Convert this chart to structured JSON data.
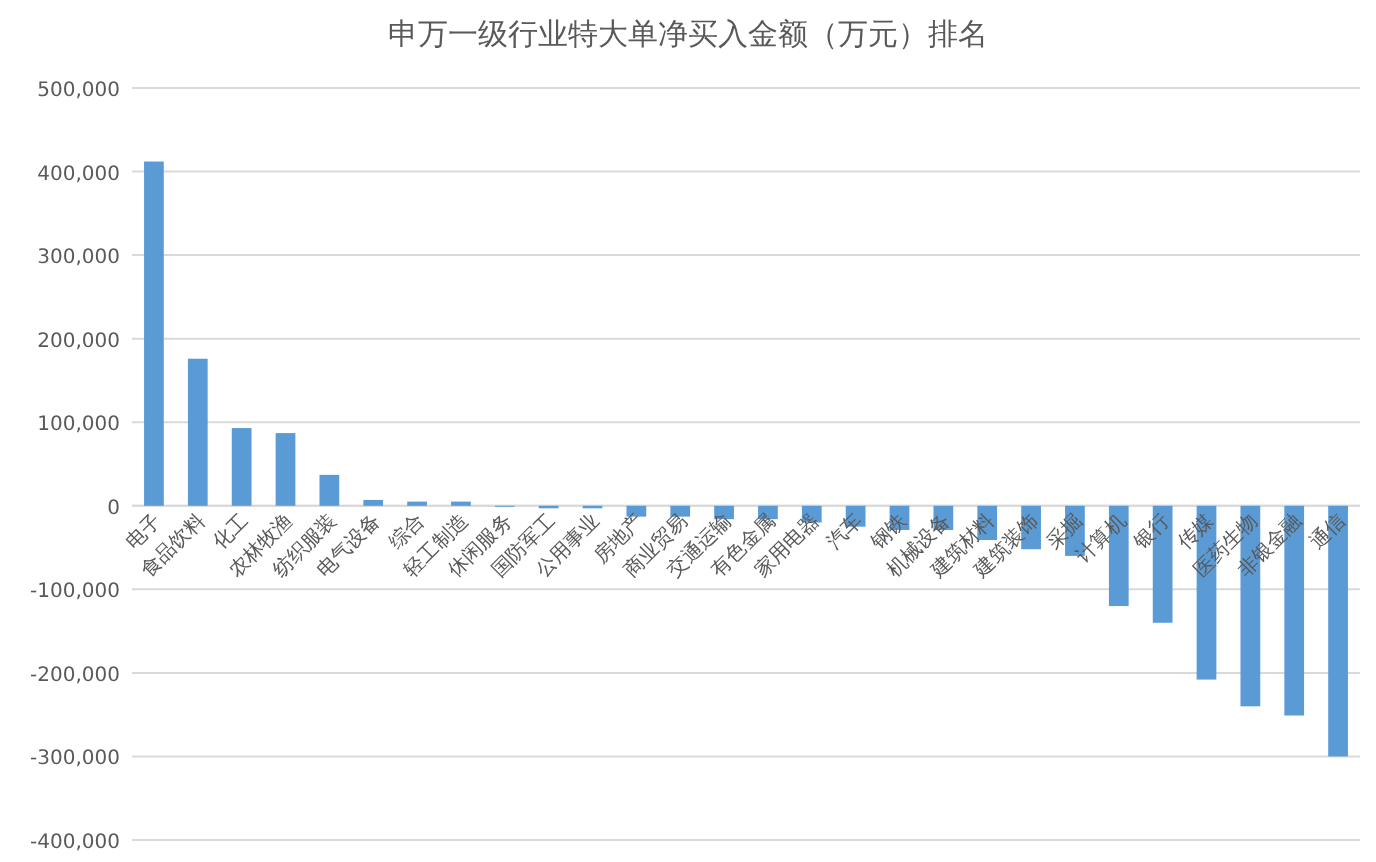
{
  "chart_data": {
    "type": "bar",
    "title": "申万一级行业特大单净买入金额（万元）排名",
    "categories": [
      "电子",
      "食品饮料",
      "化工",
      "农林牧渔",
      "纺织服装",
      "电气设备",
      "综合",
      "轻工制造",
      "休闲服务",
      "国防军工",
      "公用事业",
      "房地产",
      "商业贸易",
      "交通运输",
      "有色金属",
      "家用电器",
      "汽车",
      "钢铁",
      "机械设备",
      "建筑材料",
      "建筑装饰",
      "采掘",
      "计算机",
      "银行",
      "传媒",
      "医药生物",
      "非银金融",
      "通信"
    ],
    "values": [
      412000,
      176000,
      93000,
      87000,
      37000,
      7000,
      5000,
      5000,
      0,
      -3000,
      -3000,
      -13000,
      -13000,
      -16000,
      -16000,
      -20000,
      -25000,
      -29000,
      -29000,
      -41000,
      -52000,
      -60000,
      -120000,
      -140000,
      -208000,
      -240000,
      -251000,
      -300000
    ],
    "color": "#5b9bd5",
    "ylim": [
      -400000,
      500000
    ],
    "yticks": [
      {
        "value": -400000,
        "label": "-400,000"
      },
      {
        "value": -300000,
        "label": "-300,000"
      },
      {
        "value": -200000,
        "label": "-200,000"
      },
      {
        "value": -100000,
        "label": "-100,000"
      },
      0,
      {
        "value": 100000,
        "label": "100,000"
      },
      {
        "value": 200000,
        "label": "200,000"
      },
      {
        "value": 300000,
        "label": "300,000"
      },
      {
        "value": 400000,
        "label": "400,000"
      },
      {
        "value": 500000,
        "label": "500,000"
      }
    ],
    "grid": "y"
  }
}
